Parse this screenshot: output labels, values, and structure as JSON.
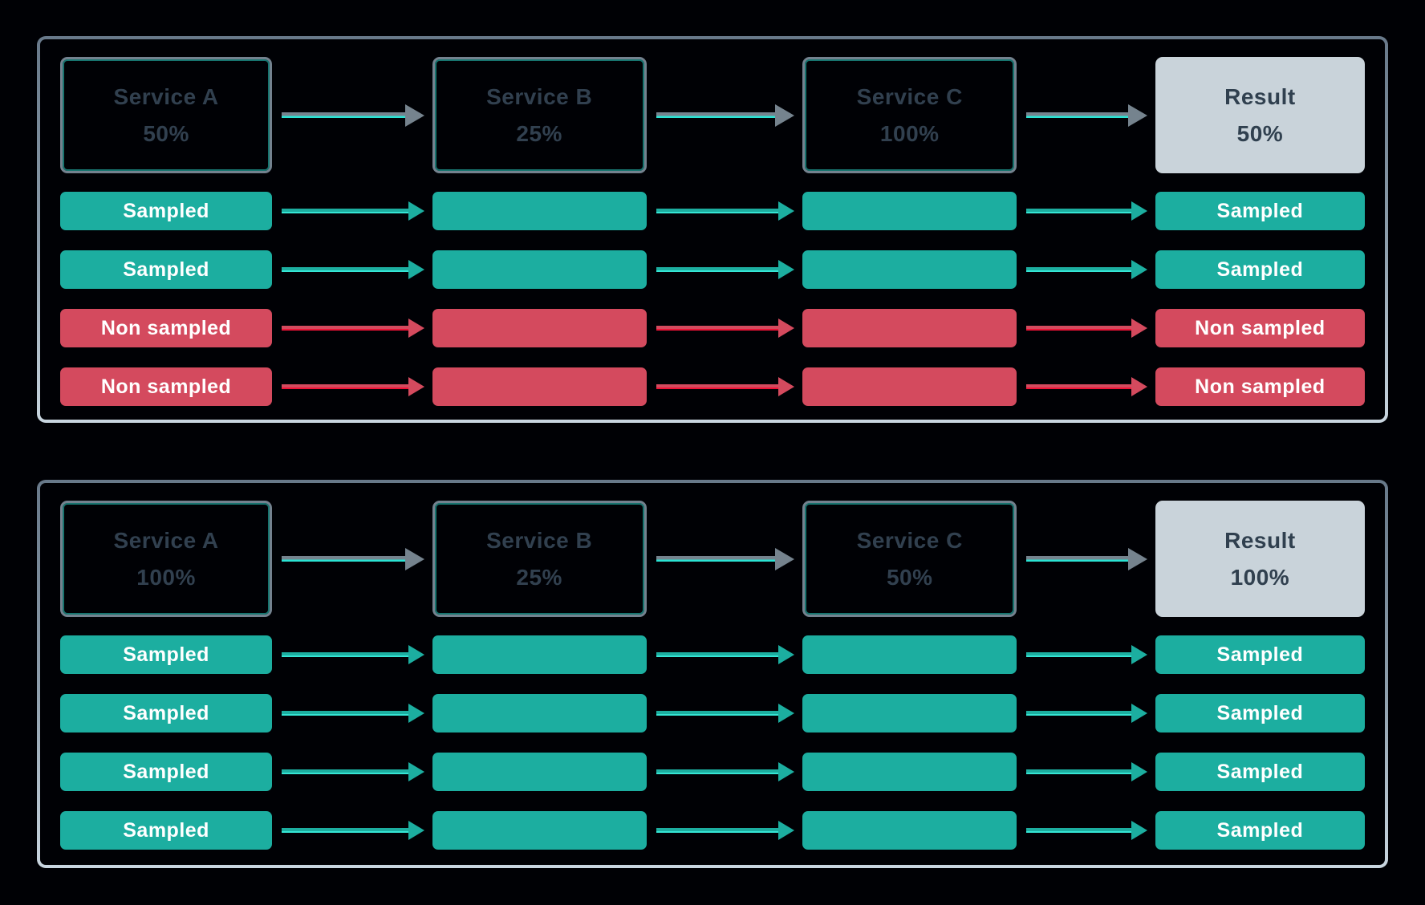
{
  "colors": {
    "sampled": "#1caea0",
    "non_sampled": "#d44a5e",
    "neutral_connector": "#75838e",
    "accent_teal": "#35e6d5",
    "accent_red": "#ee1236",
    "result_background": "#c9d3da",
    "service_text": "#31404f",
    "panel_border_top": "#68798a",
    "panel_border_bottom": "#c9d6e0",
    "background": "#000105"
  },
  "panels": [
    {
      "services": [
        {
          "name": "Service A",
          "rate": "50%"
        },
        {
          "name": "Service B",
          "rate": "25%"
        },
        {
          "name": "Service C",
          "rate": "100%"
        }
      ],
      "result": {
        "name": "Result",
        "rate": "50%"
      },
      "traces": [
        {
          "status": "sampled",
          "label": "Sampled"
        },
        {
          "status": "sampled",
          "label": "Sampled"
        },
        {
          "status": "non-sampled",
          "label": "Non sampled"
        },
        {
          "status": "non-sampled",
          "label": "Non sampled"
        }
      ]
    },
    {
      "services": [
        {
          "name": "Service A",
          "rate": "100%"
        },
        {
          "name": "Service B",
          "rate": "25%"
        },
        {
          "name": "Service C",
          "rate": "50%"
        }
      ],
      "result": {
        "name": "Result",
        "rate": "100%"
      },
      "traces": [
        {
          "status": "sampled",
          "label": "Sampled"
        },
        {
          "status": "sampled",
          "label": "Sampled"
        },
        {
          "status": "sampled",
          "label": "Sampled"
        },
        {
          "status": "sampled",
          "label": "Sampled"
        }
      ]
    }
  ]
}
